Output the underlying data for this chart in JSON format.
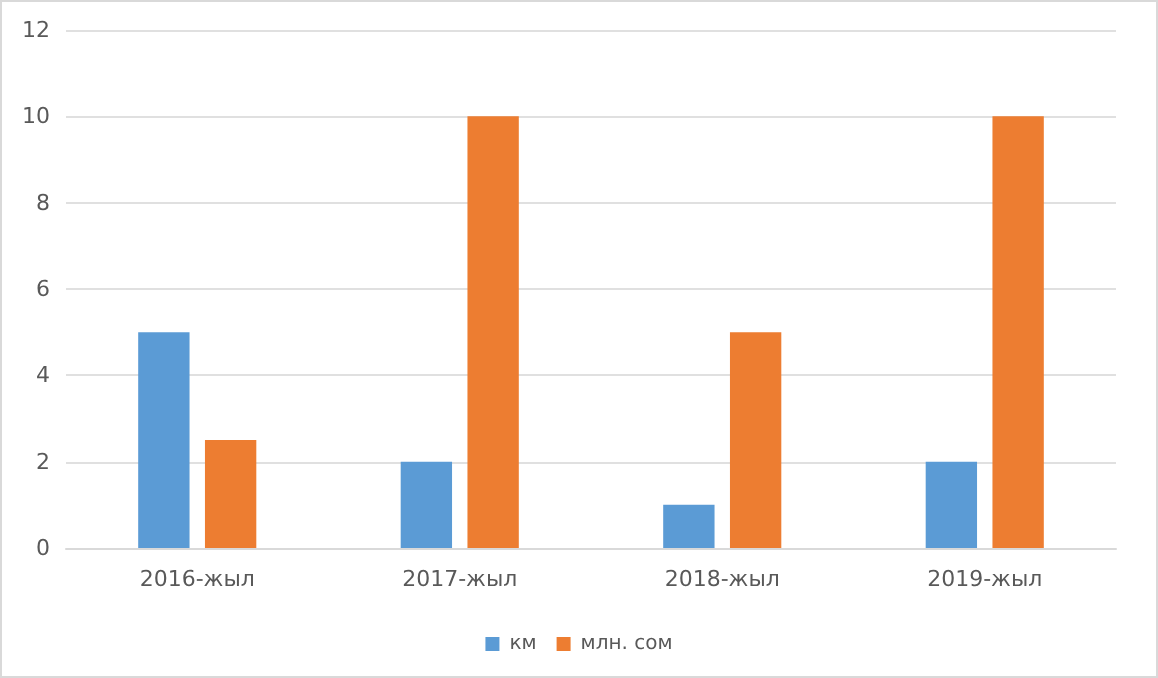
{
  "chart_data": {
    "type": "bar",
    "categories": [
      "2016-жыл",
      "2017-жыл",
      "2018-жыл",
      "2019-жыл"
    ],
    "series": [
      {
        "name": "км",
        "color": "#5b9bd5",
        "values": [
          5,
          2,
          1,
          2
        ]
      },
      {
        "name": "млн. сом",
        "color": "#ed7d31",
        "values": [
          2.5,
          10,
          5,
          10
        ]
      }
    ],
    "ylim": [
      0,
      12
    ],
    "yticks": [
      0,
      2,
      4,
      6,
      8,
      10,
      12
    ],
    "grid": "y",
    "legend": "bottom"
  }
}
